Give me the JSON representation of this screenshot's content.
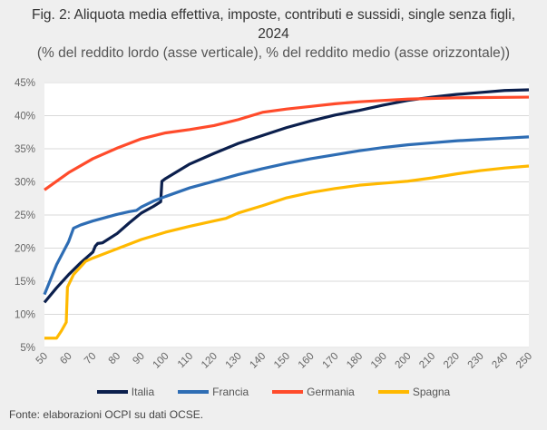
{
  "title_line1": "Fig. 2: Aliquota media effettiva, imposte, contributi e sussidi, single senza figli,",
  "title_line2": "2024",
  "subtitle": "(% del reddito lordo (asse verticale), % del reddito medio (asse orizzontale))",
  "footnote": "Fonte: elaborazioni OCPI su dati OCSE.",
  "chart_data": {
    "type": "line",
    "title": "Fig. 2: Aliquota media effettiva, imposte, contributi e sussidi, single senza figli, 2024",
    "xlim": [
      50,
      250
    ],
    "ylim": [
      5,
      45
    ],
    "x_ticks": [
      "50",
      "60",
      "70",
      "80",
      "90",
      "100",
      "110",
      "120",
      "130",
      "140",
      "150",
      "160",
      "170",
      "180",
      "190",
      "200",
      "210",
      "220",
      "230",
      "240",
      "250"
    ],
    "y_ticks": [
      "5%",
      "10%",
      "15%",
      "20%",
      "25%",
      "30%",
      "35%",
      "40%",
      "45%"
    ],
    "grid": "horizontal",
    "legend": "bottom",
    "series": [
      {
        "name": "Italia",
        "color": "#0b1f4d",
        "points": [
          [
            50,
            11.8
          ],
          [
            55,
            14
          ],
          [
            60,
            16
          ],
          [
            65,
            17.8
          ],
          [
            70,
            19.4
          ],
          [
            71,
            20.3
          ],
          [
            72,
            20.7
          ],
          [
            74,
            20.8
          ],
          [
            80,
            22.2
          ],
          [
            85,
            23.8
          ],
          [
            90,
            25.3
          ],
          [
            95,
            26.3
          ],
          [
            98,
            27
          ],
          [
            98.5,
            30.1
          ],
          [
            100,
            30.5
          ],
          [
            110,
            32.7
          ],
          [
            120,
            34.3
          ],
          [
            130,
            35.8
          ],
          [
            140,
            37
          ],
          [
            150,
            38.2
          ],
          [
            160,
            39.2
          ],
          [
            170,
            40.1
          ],
          [
            180,
            40.8
          ],
          [
            190,
            41.6
          ],
          [
            200,
            42.3
          ],
          [
            210,
            42.8
          ],
          [
            220,
            43.2
          ],
          [
            230,
            43.5
          ],
          [
            240,
            43.8
          ],
          [
            250,
            43.9
          ]
        ]
      },
      {
        "name": "Francia",
        "color": "#2e6db4",
        "points": [
          [
            50,
            13
          ],
          [
            55,
            17.5
          ],
          [
            60,
            21
          ],
          [
            62,
            23
          ],
          [
            65,
            23.5
          ],
          [
            70,
            24.1
          ],
          [
            75,
            24.6
          ],
          [
            80,
            25.1
          ],
          [
            85,
            25.5
          ],
          [
            88,
            25.7
          ],
          [
            90,
            26.2
          ],
          [
            95,
            27.1
          ],
          [
            100,
            27.8
          ],
          [
            110,
            29.1
          ],
          [
            120,
            30.1
          ],
          [
            130,
            31.1
          ],
          [
            140,
            32
          ],
          [
            150,
            32.8
          ],
          [
            160,
            33.5
          ],
          [
            170,
            34.1
          ],
          [
            180,
            34.7
          ],
          [
            190,
            35.2
          ],
          [
            200,
            35.6
          ],
          [
            210,
            35.9
          ],
          [
            220,
            36.2
          ],
          [
            230,
            36.4
          ],
          [
            240,
            36.6
          ],
          [
            250,
            36.8
          ]
        ]
      },
      {
        "name": "Germania",
        "color": "#ff4b2b",
        "points": [
          [
            50,
            28.8
          ],
          [
            60,
            31.4
          ],
          [
            70,
            33.5
          ],
          [
            80,
            35.1
          ],
          [
            90,
            36.5
          ],
          [
            100,
            37.4
          ],
          [
            110,
            37.9
          ],
          [
            120,
            38.5
          ],
          [
            130,
            39.4
          ],
          [
            140,
            40.5
          ],
          [
            150,
            41
          ],
          [
            160,
            41.4
          ],
          [
            170,
            41.8
          ],
          [
            180,
            42.1
          ],
          [
            190,
            42.3
          ],
          [
            200,
            42.5
          ],
          [
            210,
            42.6
          ],
          [
            220,
            42.7
          ],
          [
            250,
            42.8
          ]
        ]
      },
      {
        "name": "Spagna",
        "color": "#ffb900",
        "points": [
          [
            50,
            6.4
          ],
          [
            55,
            6.4
          ],
          [
            57,
            7.5
          ],
          [
            59,
            8.8
          ],
          [
            59.5,
            14.1
          ],
          [
            62,
            16
          ],
          [
            67,
            18
          ],
          [
            70,
            18.5
          ],
          [
            80,
            19.9
          ],
          [
            90,
            21.3
          ],
          [
            100,
            22.4
          ],
          [
            110,
            23.3
          ],
          [
            120,
            24.1
          ],
          [
            125,
            24.5
          ],
          [
            130,
            25.3
          ],
          [
            140,
            26.4
          ],
          [
            150,
            27.6
          ],
          [
            160,
            28.4
          ],
          [
            170,
            29
          ],
          [
            180,
            29.5
          ],
          [
            190,
            29.8
          ],
          [
            200,
            30.1
          ],
          [
            210,
            30.6
          ],
          [
            220,
            31.2
          ],
          [
            230,
            31.7
          ],
          [
            240,
            32.1
          ],
          [
            250,
            32.4
          ]
        ]
      }
    ]
  }
}
